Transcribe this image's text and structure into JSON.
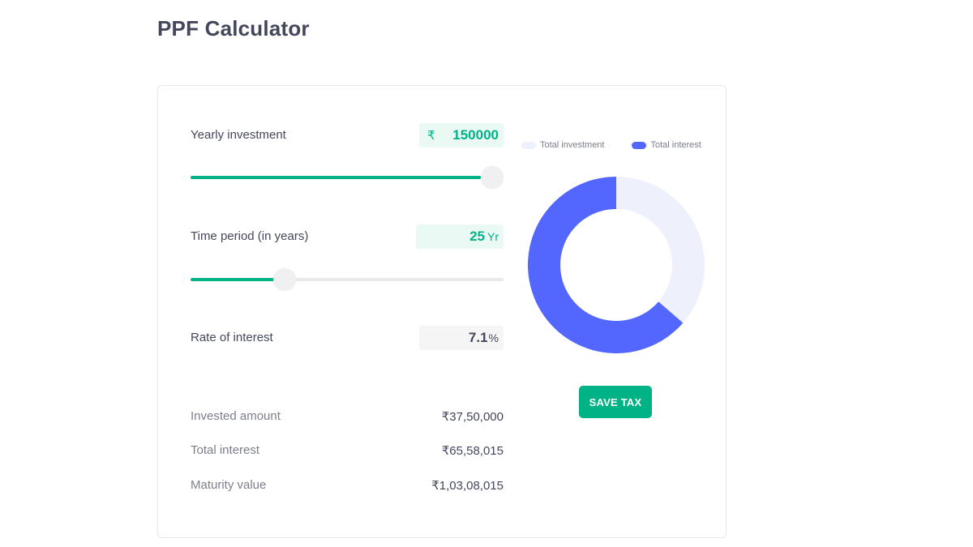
{
  "page": {
    "title": "PPF Calculator"
  },
  "calculator": {
    "yearly_investment": {
      "label": "Yearly investment",
      "currency_symbol": "₹",
      "value": "150000",
      "slider_fraction": 1.0
    },
    "time_period": {
      "label": "Time period (in years)",
      "value": "25",
      "unit": "Yr",
      "slider_fraction": 0.3
    },
    "rate_of_interest": {
      "label": "Rate of interest",
      "value": "7.1",
      "unit": "%"
    },
    "summary": {
      "invested_amount_label": "Invested amount",
      "invested_amount_value": "₹37,50,000",
      "total_interest_label": "Total interest",
      "total_interest_value": "₹65,58,015",
      "maturity_value_label": "Maturity value",
      "maturity_value_value": "₹1,03,08,015"
    }
  },
  "chart_data": {
    "type": "pie",
    "donut": true,
    "legend_position": "top",
    "series": [
      {
        "name": "Total investment",
        "value": 3750000,
        "color": "#eef0fb"
      },
      {
        "name": "Total interest",
        "value": 6558015,
        "color": "#5367ff"
      }
    ]
  },
  "actions": {
    "save_tax_label": "SAVE TAX"
  },
  "colors": {
    "accent": "#00b386",
    "chart_investment": "#eef0fb",
    "chart_interest": "#5367ff",
    "text_primary": "#44475b",
    "text_secondary": "#7c7e8c"
  }
}
